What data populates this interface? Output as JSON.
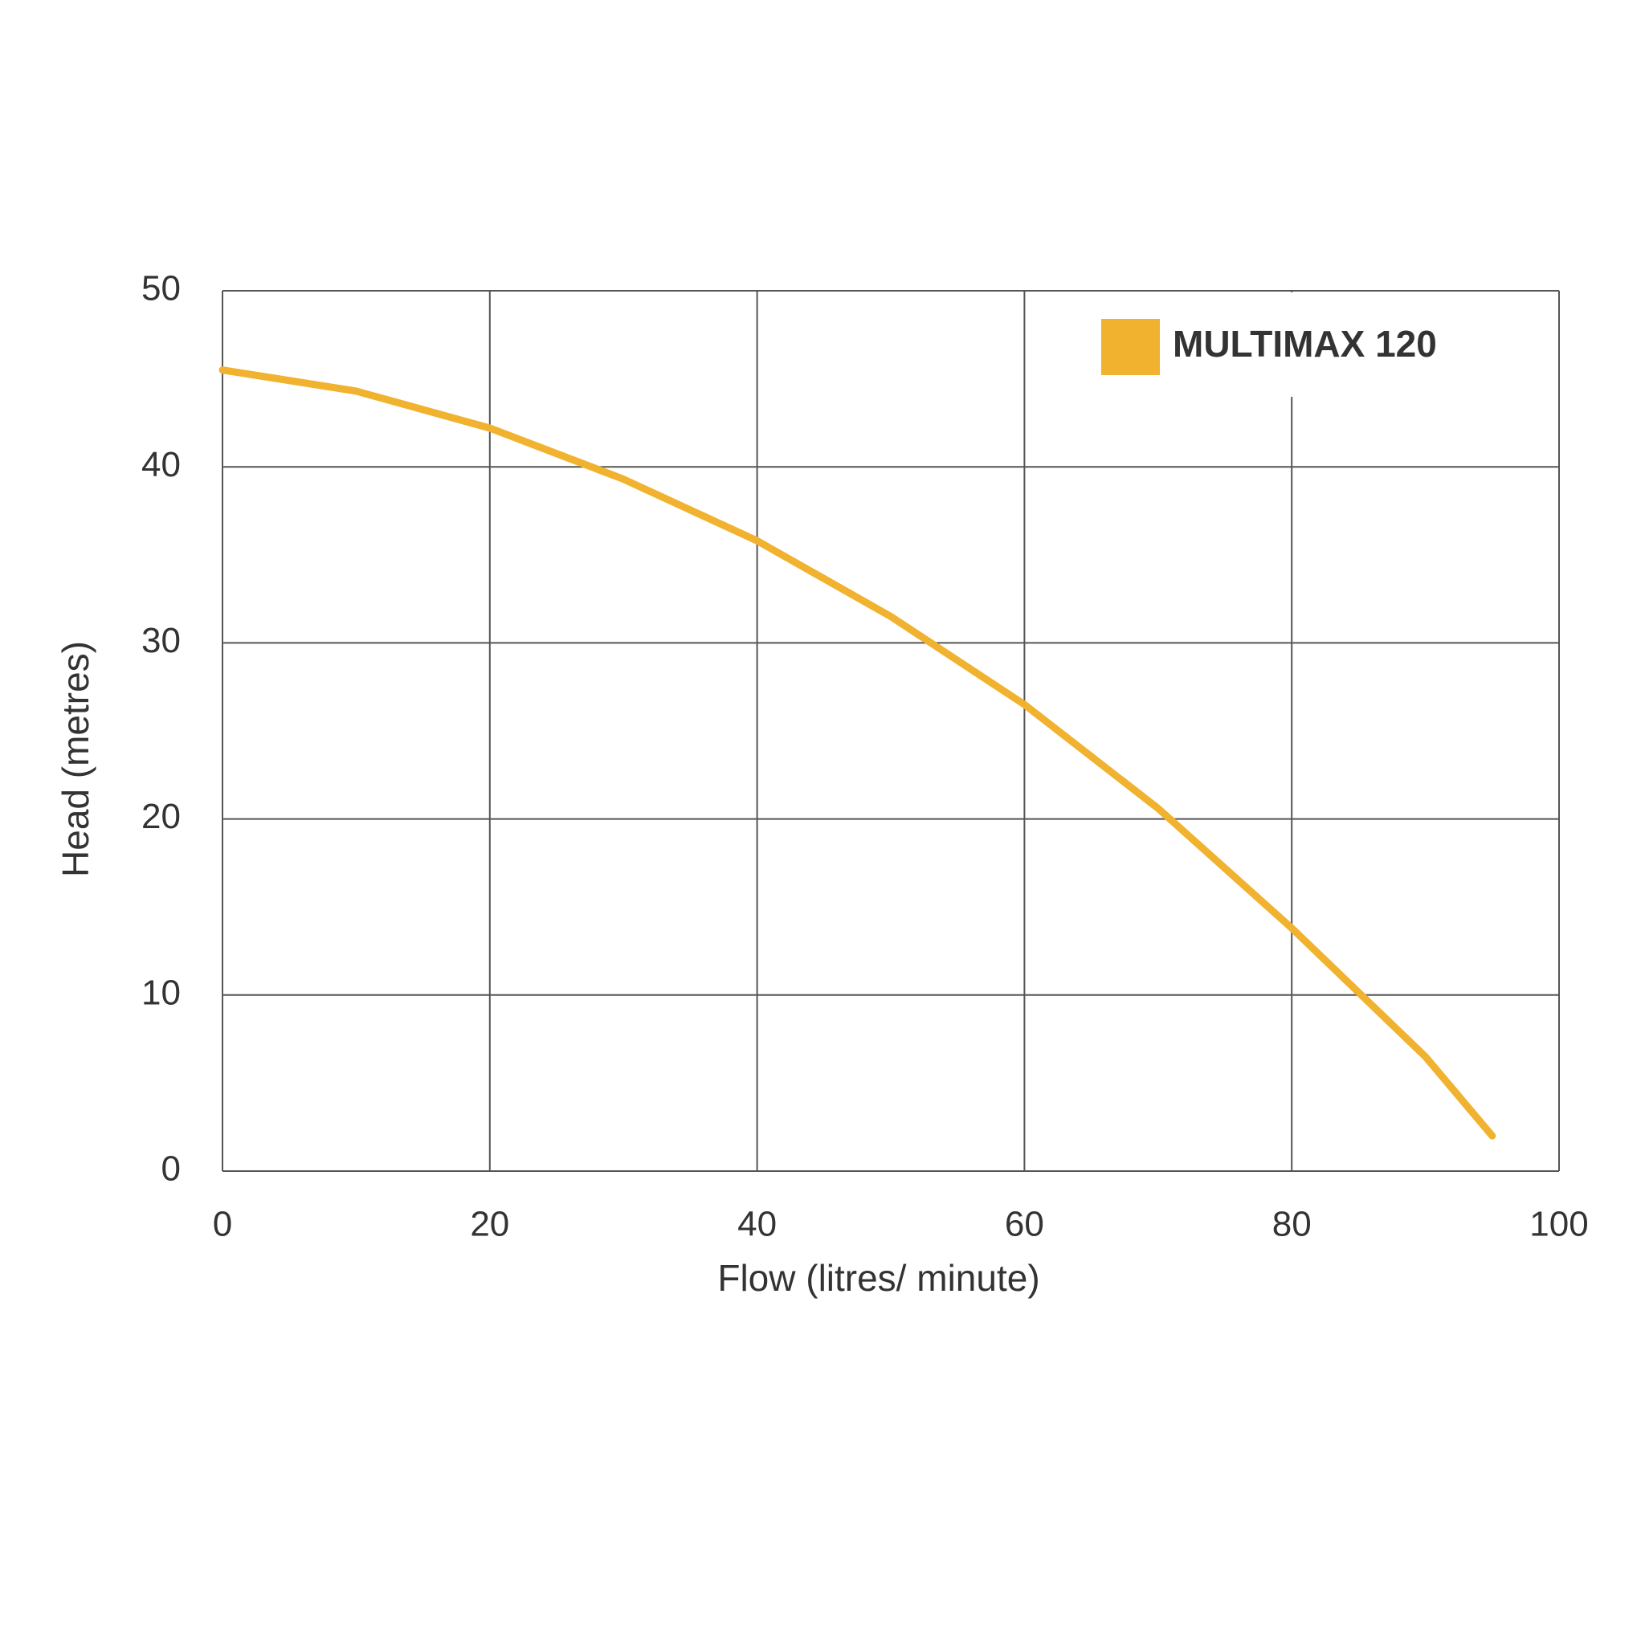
{
  "chart_data": {
    "type": "line",
    "x_label": "Flow (litres/ minute)",
    "y_label": "Head (metres)",
    "x": [
      0,
      10,
      20,
      30,
      40,
      50,
      60,
      70,
      80,
      90,
      95
    ],
    "series": [
      {
        "name": "MULTIMAX 120",
        "color": "#f0b22f",
        "values": [
          45.5,
          44.3,
          42.2,
          39.3,
          35.8,
          31.5,
          26.5,
          20.6,
          13.8,
          6.5,
          2
        ]
      }
    ],
    "xlim": [
      0,
      100
    ],
    "xticks": [
      0,
      20,
      40,
      60,
      80,
      100
    ],
    "ylim": [
      0,
      50
    ],
    "yticks": [
      0,
      10,
      20,
      30,
      40,
      50
    ],
    "grid": true,
    "legend": "upper right"
  }
}
